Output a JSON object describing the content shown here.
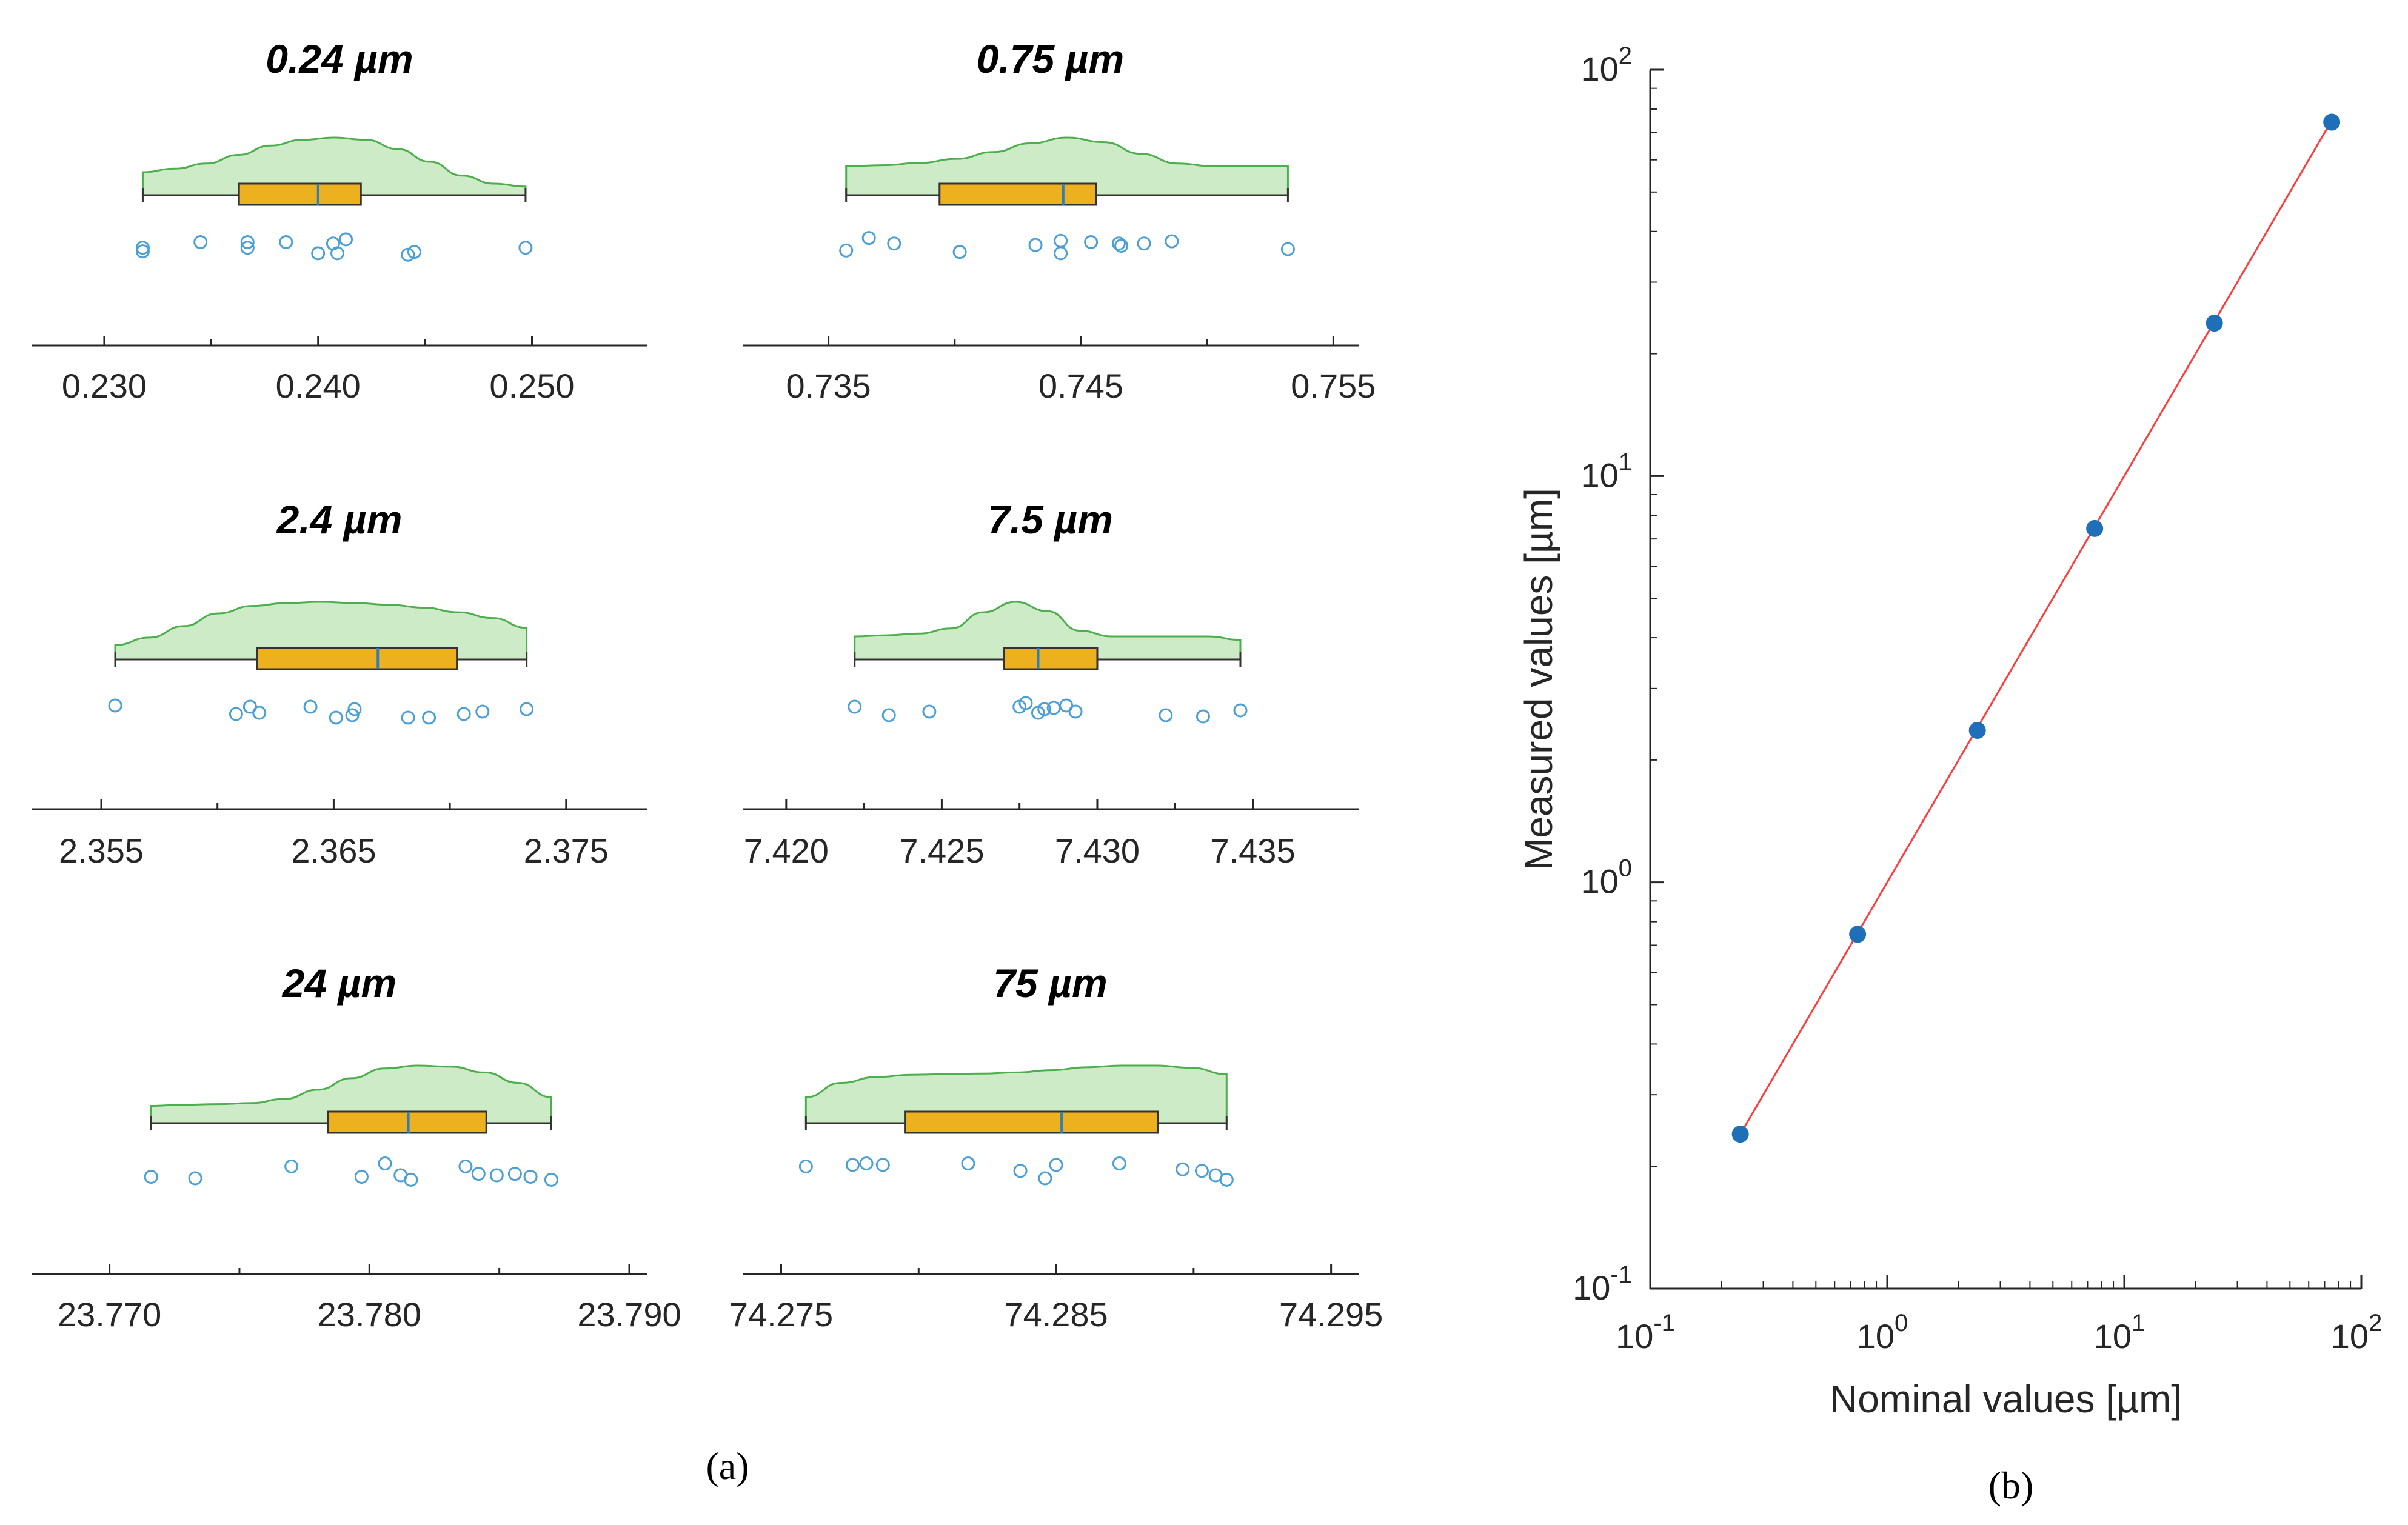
{
  "figure": {
    "panel_a_label": "(a)",
    "panel_b_label": "(b)",
    "colors": {
      "violin_fill": "#cdebc7",
      "violin_stroke": "#4cae4c",
      "box_fill": "#edb120",
      "median": "#2e7fb8",
      "points": "#4a9fd6",
      "fit_line": "#ff3b3b",
      "scatter_points": "#1f6fb8",
      "axis": "#262626"
    }
  },
  "chart_data": [
    {
      "type": "raincloud",
      "title": "0.24 µm",
      "xlim": [
        0.2266,
        0.2554
      ],
      "ticks": [
        0.23,
        0.24,
        0.25
      ],
      "tick_labels": [
        "0.230",
        "0.240",
        "0.250"
      ],
      "density": [
        0.4,
        0.46,
        0.55,
        0.7,
        0.86,
        0.96,
        1.0,
        0.96,
        0.8,
        0.58,
        0.34,
        0.2,
        0.15
      ],
      "box": {
        "q1": 0.2363,
        "median": 0.24,
        "q3": 0.242,
        "whisker_low": 0.2318,
        "whisker_high": 0.2497
      },
      "points": [
        [
          0.2318,
          0.55
        ],
        [
          0.2318,
          0.42
        ],
        [
          0.2345,
          0.75
        ],
        [
          0.2367,
          0.75
        ],
        [
          0.2367,
          0.55
        ],
        [
          0.2385,
          0.75
        ],
        [
          0.24,
          0.35
        ],
        [
          0.2407,
          0.7
        ],
        [
          0.2409,
          0.35
        ],
        [
          0.2413,
          0.85
        ],
        [
          0.2442,
          0.3
        ],
        [
          0.2445,
          0.4
        ],
        [
          0.2497,
          0.55
        ]
      ]
    },
    {
      "type": "raincloud",
      "title": "0.75 µm",
      "xlim": [
        0.7316,
        0.756
      ],
      "ticks": [
        0.735,
        0.745,
        0.755
      ],
      "tick_labels": [
        "0.735",
        "0.745",
        "0.755"
      ],
      "density": [
        0.5,
        0.52,
        0.56,
        0.63,
        0.75,
        0.9,
        1.0,
        0.92,
        0.72,
        0.55,
        0.5,
        0.5,
        0.5
      ],
      "box": {
        "q1": 0.7394,
        "median": 0.7443,
        "q3": 0.7456,
        "whisker_low": 0.7357,
        "whisker_high": 0.7532
      },
      "points": [
        [
          0.7357,
          0.45
        ],
        [
          0.7366,
          0.9
        ],
        [
          0.7376,
          0.7
        ],
        [
          0.7402,
          0.4
        ],
        [
          0.7432,
          0.65
        ],
        [
          0.7442,
          0.8
        ],
        [
          0.7442,
          0.35
        ],
        [
          0.7454,
          0.75
        ],
        [
          0.7465,
          0.7
        ],
        [
          0.7466,
          0.62
        ],
        [
          0.7475,
          0.7
        ],
        [
          0.7486,
          0.78
        ],
        [
          0.7532,
          0.5
        ]
      ]
    },
    {
      "type": "raincloud",
      "title": "2.4 µm",
      "xlim": [
        2.352,
        2.3785
      ],
      "ticks": [
        2.355,
        2.365,
        2.375
      ],
      "tick_labels": [
        "2.355",
        "2.365",
        "2.375"
      ],
      "density": [
        0.25,
        0.38,
        0.58,
        0.8,
        0.93,
        0.98,
        1.0,
        0.98,
        0.95,
        0.9,
        0.82,
        0.72,
        0.55
      ],
      "box": {
        "q1": 2.3617,
        "median": 2.3669,
        "q3": 2.3703,
        "whisker_low": 2.3556,
        "whisker_high": 2.3733
      },
      "points": [
        [
          2.3556,
          0.85
        ],
        [
          2.3608,
          0.5
        ],
        [
          2.3614,
          0.8
        ],
        [
          2.3618,
          0.55
        ],
        [
          2.364,
          0.8
        ],
        [
          2.3651,
          0.35
        ],
        [
          2.3658,
          0.45
        ],
        [
          2.3659,
          0.7
        ],
        [
          2.3682,
          0.35
        ],
        [
          2.3691,
          0.35
        ],
        [
          2.3706,
          0.5
        ],
        [
          2.3714,
          0.6
        ],
        [
          2.3733,
          0.7
        ]
      ]
    },
    {
      "type": "raincloud",
      "title": "7.5 µm",
      "xlim": [
        7.4186,
        7.4384
      ],
      "ticks": [
        7.42,
        7.425,
        7.43,
        7.435
      ],
      "tick_labels": [
        "7.420",
        "7.425",
        "7.430",
        "7.435"
      ],
      "density": [
        0.4,
        0.42,
        0.45,
        0.54,
        0.82,
        1.0,
        0.84,
        0.5,
        0.4,
        0.4,
        0.4,
        0.4,
        0.34
      ],
      "box": {
        "q1": 7.427,
        "median": 7.4281,
        "q3": 7.43,
        "whisker_low": 7.4222,
        "whisker_high": 7.4346
      },
      "points": [
        [
          7.4222,
          0.8
        ],
        [
          7.4233,
          0.45
        ],
        [
          7.4246,
          0.6
        ],
        [
          7.4275,
          0.8
        ],
        [
          7.4277,
          0.95
        ],
        [
          7.4281,
          0.55
        ],
        [
          7.4283,
          0.7
        ],
        [
          7.4286,
          0.75
        ],
        [
          7.429,
          0.85
        ],
        [
          7.4293,
          0.6
        ],
        [
          7.4322,
          0.45
        ],
        [
          7.4334,
          0.4
        ],
        [
          7.4346,
          0.65
        ]
      ]
    },
    {
      "type": "raincloud",
      "title": "24 µm",
      "xlim": [
        23.767,
        23.7907
      ],
      "ticks": [
        23.77,
        23.78,
        23.79
      ],
      "tick_labels": [
        "23.770",
        "23.780",
        "23.790"
      ],
      "density": [
        0.3,
        0.32,
        0.33,
        0.35,
        0.42,
        0.58,
        0.78,
        0.95,
        1.0,
        0.98,
        0.88,
        0.7,
        0.45
      ],
      "box": {
        "q1": 23.7784,
        "median": 23.7815,
        "q3": 23.7845,
        "whisker_low": 23.7716,
        "whisker_high": 23.787
      },
      "points": [
        [
          23.7716,
          0.5
        ],
        [
          23.7733,
          0.45
        ],
        [
          23.777,
          0.85
        ],
        [
          23.7797,
          0.5
        ],
        [
          23.7806,
          0.95
        ],
        [
          23.7812,
          0.55
        ],
        [
          23.7816,
          0.4
        ],
        [
          23.7837,
          0.85
        ],
        [
          23.7842,
          0.6
        ],
        [
          23.7849,
          0.55
        ],
        [
          23.7856,
          0.6
        ],
        [
          23.7862,
          0.5
        ],
        [
          23.787,
          0.4
        ]
      ]
    },
    {
      "type": "raincloud",
      "title": "75 µm",
      "xlim": [
        74.2736,
        74.296
      ],
      "ticks": [
        74.275,
        74.285,
        74.295
      ],
      "tick_labels": [
        "74.275",
        "74.285",
        "74.295"
      ],
      "density": [
        0.45,
        0.7,
        0.8,
        0.84,
        0.85,
        0.86,
        0.88,
        0.92,
        0.97,
        1.0,
        1.0,
        0.96,
        0.85
      ],
      "box": {
        "q1": 74.2795,
        "median": 74.2852,
        "q3": 74.2887,
        "whisker_low": 74.2759,
        "whisker_high": 74.2912
      },
      "points": [
        [
          74.2759,
          0.85
        ],
        [
          74.2776,
          0.9
        ],
        [
          74.2781,
          0.95
        ],
        [
          74.2787,
          0.9
        ],
        [
          74.2818,
          0.95
        ],
        [
          74.2837,
          0.7
        ],
        [
          74.2846,
          0.45
        ],
        [
          74.285,
          0.9
        ],
        [
          74.2873,
          0.95
        ],
        [
          74.2896,
          0.75
        ],
        [
          74.2903,
          0.7
        ],
        [
          74.2908,
          0.55
        ],
        [
          74.2912,
          0.4
        ]
      ]
    },
    {
      "type": "scatter",
      "scale": "log-log",
      "xlabel": "Nominal values [µm]",
      "ylabel": "Measured values [µm]",
      "xlim": [
        0.1,
        100
      ],
      "ylim": [
        0.1,
        100
      ],
      "tick_bases": [
        "10",
        "10",
        "10",
        "10"
      ],
      "tick_exponents": [
        "-1",
        "0",
        "1",
        "2"
      ],
      "points": [
        {
          "x": 0.24,
          "y": 0.24
        },
        {
          "x": 0.75,
          "y": 0.745
        },
        {
          "x": 2.4,
          "y": 2.366
        },
        {
          "x": 7.5,
          "y": 7.428
        },
        {
          "x": 24,
          "y": 23.78
        },
        {
          "x": 75,
          "y": 74.285
        }
      ],
      "fit_line": {
        "x_start": 0.24,
        "x_end": 75
      }
    }
  ]
}
